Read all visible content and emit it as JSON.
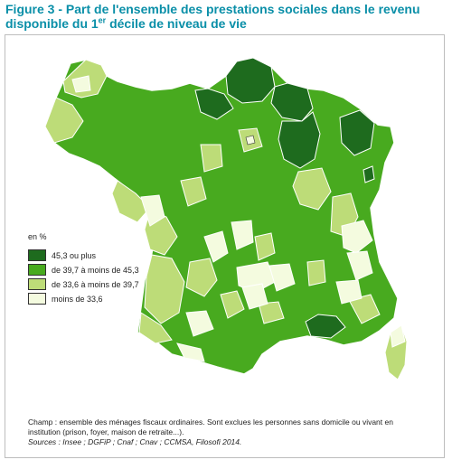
{
  "figure": {
    "title_part1": "Figure 3 - Part de l'ensemble des prestations sociales dans le revenu disponible du 1",
    "title_sup": "er",
    "title_part2": " décile de niveau de vie"
  },
  "legend": {
    "unit": "en %",
    "classes": [
      {
        "label": "45,3 ou plus",
        "color": "#1e6b1e"
      },
      {
        "label": "de 39,7 à moins de 45,3",
        "color": "#48aa1f"
      },
      {
        "label": "de 33,6 à moins de 39,7",
        "color": "#bddc78"
      },
      {
        "label": "moins de 33,6",
        "color": "#f4fbdf"
      }
    ]
  },
  "notes": {
    "champ": "Champ : ensemble des ménages fiscaux ordinaires. Sont exclues les personnes sans domicile ou vivant en institution (prison, foyer, maison de retraite...).",
    "sources": "Sources : Insee ; DGFiP ; Cnaf ; Cnav ; CCMSA, Filosofi 2014."
  },
  "map": {
    "border_color": "#ffffff",
    "background_color": "#ffffff"
  }
}
